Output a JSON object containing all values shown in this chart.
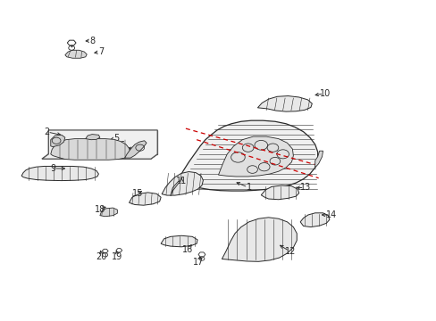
{
  "bg_color": "#ffffff",
  "line_color": "#2a2a2a",
  "red_line_color": "#cc0000",
  "gray_fill": "#e8e8e8",
  "dark_fill": "#c8c8c8",
  "box_stroke": "#666666",
  "label_positions": {
    "1": [
      0.57,
      0.415,
      0.535,
      0.435
    ],
    "2": [
      0.105,
      0.59,
      0.145,
      0.578
    ],
    "3": [
      0.185,
      0.548,
      0.205,
      0.553
    ],
    "4": [
      0.31,
      0.535,
      0.285,
      0.54
    ],
    "5": [
      0.265,
      0.57,
      0.245,
      0.562
    ],
    "6": [
      0.278,
      0.547,
      0.26,
      0.545
    ],
    "7": [
      0.23,
      0.84,
      0.208,
      0.835
    ],
    "8": [
      0.21,
      0.875,
      0.188,
      0.873
    ],
    "9": [
      0.12,
      0.475,
      0.155,
      0.475
    ],
    "10": [
      0.745,
      0.71,
      0.715,
      0.703
    ],
    "11": [
      0.415,
      0.435,
      0.415,
      0.455
    ],
    "12": [
      0.665,
      0.215,
      0.635,
      0.24
    ],
    "13": [
      0.7,
      0.415,
      0.672,
      0.415
    ],
    "14": [
      0.76,
      0.33,
      0.73,
      0.33
    ],
    "15": [
      0.315,
      0.398,
      0.33,
      0.408
    ],
    "16": [
      0.43,
      0.22,
      0.442,
      0.245
    ],
    "17": [
      0.455,
      0.182,
      0.46,
      0.21
    ],
    "18": [
      0.228,
      0.348,
      0.248,
      0.358
    ],
    "19": [
      0.268,
      0.198,
      0.265,
      0.228
    ],
    "20": [
      0.232,
      0.198,
      0.228,
      0.228
    ]
  }
}
